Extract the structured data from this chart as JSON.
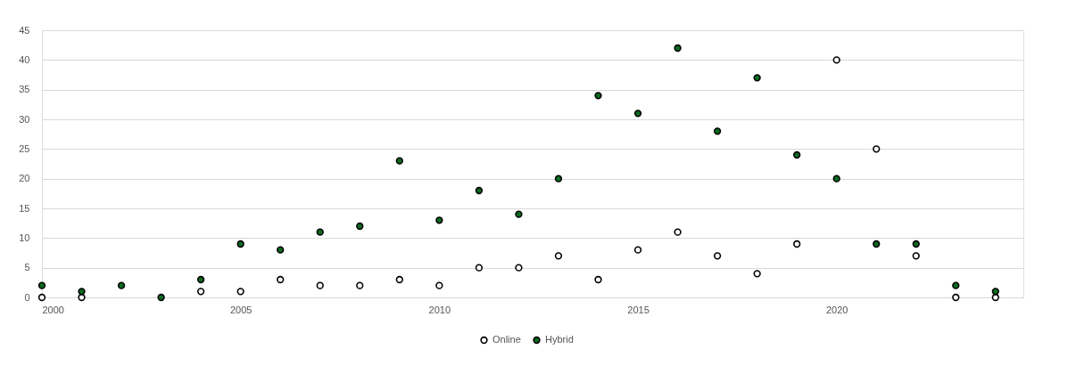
{
  "chart_data": {
    "type": "scatter",
    "x": [
      2000,
      2001,
      2002,
      2003,
      2004,
      2005,
      2006,
      2007,
      2008,
      2009,
      2010,
      2011,
      2012,
      2013,
      2014,
      2015,
      2016,
      2017,
      2018,
      2019,
      2020,
      2021,
      2022,
      2023,
      2024
    ],
    "series": [
      {
        "name": "Online",
        "color": "#ffffff",
        "values": [
          0,
          0,
          null,
          null,
          1,
          1,
          3,
          2,
          2,
          3,
          2,
          5,
          5,
          7,
          3,
          8,
          11,
          7,
          4,
          9,
          40,
          25,
          7,
          0,
          0
        ]
      },
      {
        "name": "Hybrid",
        "color": "#0a6b1f",
        "values": [
          2,
          1,
          2,
          0,
          3,
          9,
          8,
          11,
          12,
          23,
          13,
          18,
          14,
          20,
          34,
          31,
          42,
          28,
          37,
          24,
          20,
          9,
          9,
          2,
          1
        ]
      }
    ],
    "xlim": [
      2000,
      2024.7
    ],
    "xticks": [
      2000,
      2005,
      2010,
      2015,
      2020
    ],
    "ylim": [
      0,
      45
    ],
    "yticks": [
      0,
      5,
      10,
      15,
      20,
      25,
      30,
      35,
      40,
      45
    ],
    "grid": "y",
    "legend": "bottom",
    "marker": "circle"
  }
}
